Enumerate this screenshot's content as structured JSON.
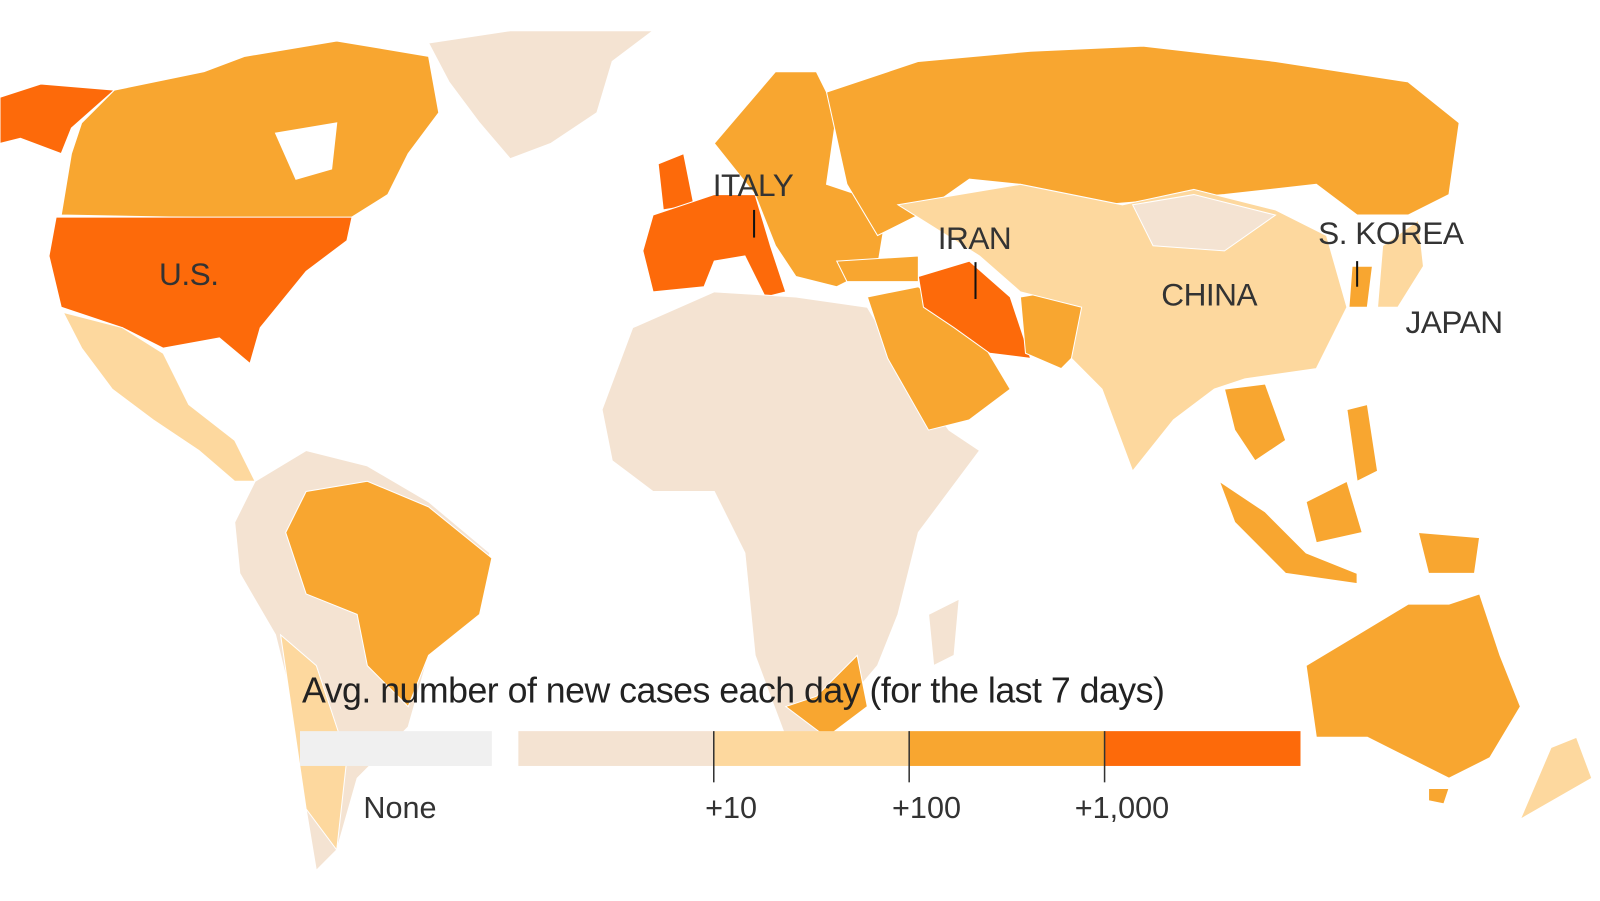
{
  "map": {
    "labels": [
      "U.S.",
      "ITALY",
      "IRAN",
      "CHINA",
      "S. KOREA",
      "JAPAN"
    ],
    "legend": {
      "title": "Avg. number of new cases each day (for the last 7 days)",
      "none": {
        "label": "None",
        "color": "#f0f0f0"
      },
      "bins": [
        {
          "color": "#f4e3d2"
        },
        {
          "color": "#fdd89e"
        },
        {
          "color": "#f8a630"
        },
        {
          "color": "#fd6a0a"
        }
      ],
      "ticks": [
        "+10",
        "+100",
        "+1,000"
      ]
    }
  }
}
